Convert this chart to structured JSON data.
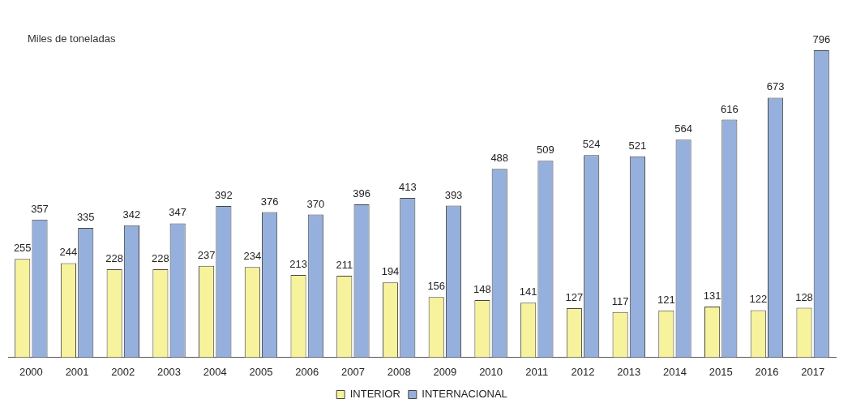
{
  "chart_data": {
    "type": "bar",
    "ylabel": "Miles de toneladas",
    "categories": [
      "2000",
      "2001",
      "2002",
      "2003",
      "2004",
      "2005",
      "2006",
      "2007",
      "2008",
      "2009",
      "2010",
      "2011",
      "2012",
      "2013",
      "2014",
      "2015",
      "2016",
      "2017"
    ],
    "series": [
      {
        "name": "INTERIOR",
        "color": "#f7f29c",
        "values": [
          255,
          244,
          228,
          228,
          237,
          234,
          213,
          211,
          194,
          156,
          148,
          141,
          127,
          117,
          121,
          131,
          122,
          128
        ]
      },
      {
        "name": "INTERNACIONAL",
        "color": "#95b0dc",
        "values": [
          357,
          335,
          342,
          347,
          392,
          376,
          370,
          396,
          413,
          393,
          488,
          509,
          524,
          521,
          564,
          616,
          673,
          796
        ]
      }
    ],
    "tick_labels": "x",
    "data_labels": true,
    "legend": "bottom",
    "grid": false
  }
}
